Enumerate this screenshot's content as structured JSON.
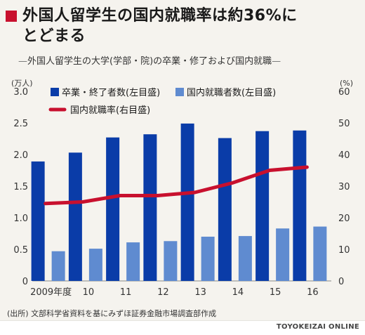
{
  "title_line1": "外国人留学生の国内就職率は約36%に",
  "title_line2": "とどまる",
  "subtitle_text": "外国人留学生の大学(学部・院)の卒業・修了および国内就職",
  "subtitle_dash": "—",
  "source": "(出所) 文部科学省資料を基にみずほ証券金融市場調査部作成",
  "brand": "TOYOKEIZAI ONLINE",
  "colors": {
    "graduates": "#0a3ca8",
    "employed": "#5f8bd0",
    "rate": "#c8102e",
    "accent": "#c8102e"
  },
  "chart_data": {
    "type": "bar",
    "categories": [
      "2009年度",
      "10",
      "11",
      "12",
      "13",
      "14",
      "15",
      "16"
    ],
    "series": [
      {
        "name": "卒業・終了者数(左目盛)",
        "axis": "left",
        "kind": "bar",
        "values": [
          1.89,
          2.03,
          2.27,
          2.32,
          2.49,
          2.26,
          2.37,
          2.38
        ]
      },
      {
        "name": "国内就職者数(左目盛)",
        "axis": "left",
        "kind": "bar",
        "values": [
          0.47,
          0.51,
          0.61,
          0.63,
          0.7,
          0.71,
          0.83,
          0.86
        ]
      },
      {
        "name": "国内就職率(右目盛)",
        "axis": "right",
        "kind": "line",
        "values": [
          24.5,
          25.0,
          27.0,
          27.0,
          28.0,
          31.0,
          35.0,
          36.0
        ]
      }
    ],
    "y_left": {
      "unit": "(万人)",
      "range": [
        0,
        3.0
      ],
      "ticks": [
        "0",
        "0.5",
        "1.0",
        "1.5",
        "2.0",
        "2.5",
        "3.0"
      ]
    },
    "y_right": {
      "unit": "(%)",
      "range": [
        0,
        60
      ],
      "ticks": [
        "0",
        "10",
        "20",
        "30",
        "40",
        "50",
        "60"
      ]
    },
    "grid": false,
    "legend_position": "top"
  }
}
